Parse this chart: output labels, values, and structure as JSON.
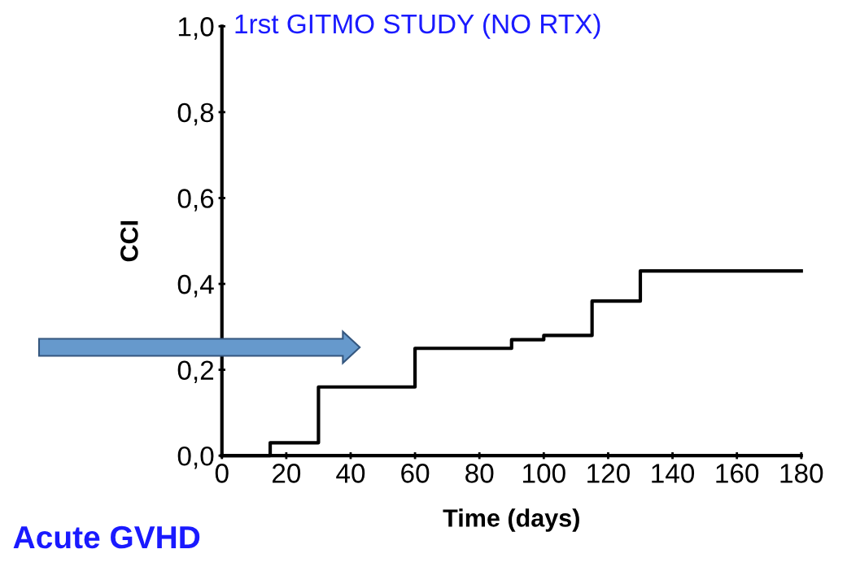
{
  "chart_data": {
    "type": "step",
    "title": "1rst GITMO STUDY (NO RTX)",
    "xlabel": "Time (days)",
    "ylabel": "CCI",
    "x": [
      0,
      15,
      30,
      60,
      90,
      100,
      115,
      130,
      180
    ],
    "series": [
      {
        "color": "#000000",
        "values": [
          0,
          0.03,
          0.16,
          0.25,
          0.27,
          0.28,
          0.36,
          0.43,
          0.43
        ]
      }
    ],
    "xlim": [
      0,
      180
    ],
    "xticks": [
      0,
      20,
      40,
      60,
      80,
      100,
      120,
      140,
      160,
      180
    ],
    "ylim": [
      0,
      1
    ],
    "yticks": [
      {
        "value": 0,
        "label": "0,0"
      },
      {
        "value": 0.2,
        "label": "0,2"
      },
      {
        "value": 0.4,
        "label": "0,4"
      },
      {
        "value": 0.6,
        "label": "0,6"
      },
      {
        "value": 0.8,
        "label": "0,8"
      },
      {
        "value": 1,
        "label": "1,0"
      }
    ],
    "marker": "none",
    "line_style": "solid",
    "annotations": [
      "Acute GVHD"
    ]
  }
}
